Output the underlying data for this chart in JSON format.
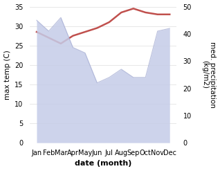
{
  "months": [
    "Jan",
    "Feb",
    "Mar",
    "Apr",
    "May",
    "Jun",
    "Jul",
    "Aug",
    "Sep",
    "Oct",
    "Nov",
    "Dec"
  ],
  "temperature": [
    28.5,
    27.0,
    25.5,
    27.5,
    28.5,
    29.5,
    31.0,
    33.5,
    34.5,
    33.5,
    33.0,
    33.0
  ],
  "precipitation": [
    45,
    41,
    46,
    35,
    33,
    22,
    24,
    27,
    24,
    24,
    41,
    42
  ],
  "temp_color": "#c0504d",
  "precip_fill_color": "#c5cce8",
  "precip_line_color": "#a0a8d0",
  "background_color": "#ffffff",
  "ylabel_left": "max temp (C)",
  "ylabel_right": "med. precipitation\n(kg/m2)",
  "xlabel": "date (month)",
  "ylim_left": [
    0,
    35
  ],
  "ylim_right": [
    0,
    50
  ],
  "yticks_left": [
    0,
    5,
    10,
    15,
    20,
    25,
    30,
    35
  ],
  "yticks_right": [
    0,
    10,
    20,
    30,
    40,
    50
  ],
  "temp_linewidth": 1.8,
  "xlabel_fontsize": 8,
  "ylabel_fontsize": 7.5,
  "tick_fontsize": 7
}
